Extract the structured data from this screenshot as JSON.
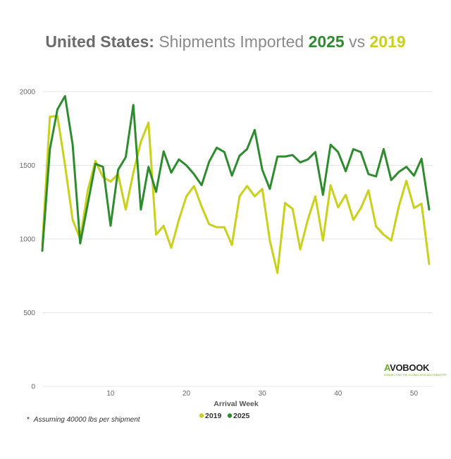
{
  "title": {
    "country": "United States:",
    "metric": "Shipments Imported",
    "year_a": "2025",
    "vs": "vs",
    "year_b": "2019"
  },
  "footnote": {
    "marker": "*",
    "text": "Assuming 40000 lbs per shipment"
  },
  "logo": {
    "name_accent": "A",
    "name_rest": "VOBOOK",
    "tagline": "CONNECTING THE GLOBAL AVOCADO INDUSTRY"
  },
  "colors": {
    "s2019": "#c9d11a",
    "s2025": "#2e8b2e",
    "grid": "#e6e6e6"
  },
  "chart_data": {
    "type": "line",
    "xlabel": "Arrival Week",
    "ylabel": "",
    "xlim": [
      1,
      52
    ],
    "ylim": [
      0,
      2000
    ],
    "yticks": [
      0,
      500,
      1000,
      1500,
      2000
    ],
    "xticks": [
      10,
      20,
      30,
      40,
      50
    ],
    "grid": true,
    "legend_position": "bottom",
    "x": [
      1,
      2,
      3,
      4,
      5,
      6,
      7,
      8,
      9,
      10,
      11,
      12,
      13,
      14,
      15,
      16,
      17,
      18,
      19,
      20,
      21,
      22,
      23,
      24,
      25,
      26,
      27,
      28,
      29,
      30,
      31,
      32,
      33,
      34,
      35,
      36,
      37,
      38,
      39,
      40,
      41,
      42,
      43,
      44,
      45,
      46,
      47,
      48,
      49,
      50,
      51,
      52
    ],
    "series": [
      {
        "name": "2019",
        "color": "#c9d11a",
        "values": [
          960,
          1830,
          1835,
          1500,
          1130,
          1000,
          1330,
          1530,
          1420,
          1390,
          1440,
          1200,
          1450,
          1660,
          1790,
          1030,
          1090,
          940,
          1130,
          1290,
          1360,
          1220,
          1100,
          1080,
          1080,
          960,
          1290,
          1360,
          1290,
          1340,
          990,
          770,
          1245,
          1205,
          930,
          1130,
          1290,
          990,
          1365,
          1215,
          1300,
          1130,
          1210,
          1330,
          1085,
          1030,
          990,
          1220,
          1395,
          1210,
          1240,
          830
        ]
      },
      {
        "name": "2025",
        "color": "#2e8b2e",
        "values": [
          920,
          1610,
          1880,
          1970,
          1640,
          970,
          1240,
          1510,
          1490,
          1090,
          1470,
          1555,
          1910,
          1200,
          1490,
          1320,
          1595,
          1450,
          1540,
          1500,
          1440,
          1365,
          1525,
          1620,
          1590,
          1430,
          1565,
          1610,
          1740,
          1470,
          1340,
          1560,
          1560,
          1570,
          1520,
          1540,
          1590,
          1300,
          1640,
          1590,
          1460,
          1610,
          1590,
          1440,
          1425,
          1610,
          1400,
          1455,
          1490,
          1430,
          1545,
          1200
        ]
      }
    ]
  }
}
